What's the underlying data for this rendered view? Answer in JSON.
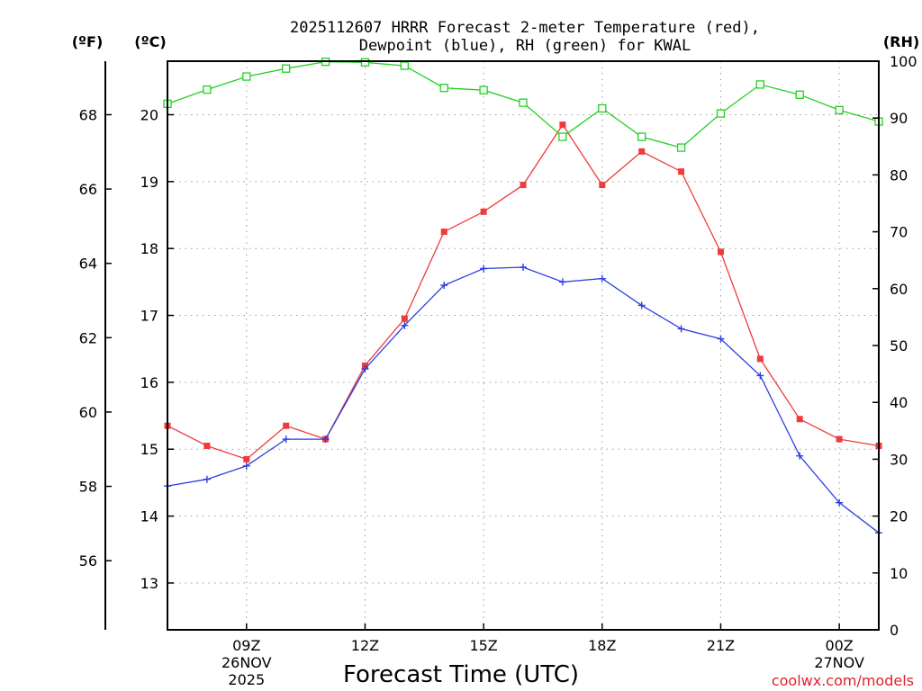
{
  "chart_data": {
    "type": "line",
    "title_lines": [
      "2025112607 HRRR Forecast 2-meter Temperature (red),",
      "Dewpoint (blue), RH (green) for KWAL"
    ],
    "units": {
      "fahrenheit": "(ºF)",
      "celsius": "(ºC)",
      "rh": "(RH)"
    },
    "xlabel": "Forecast Time (UTC)",
    "credit": "coolwx.com/models",
    "x_hours": [
      7,
      8,
      9,
      10,
      11,
      12,
      13,
      14,
      15,
      16,
      17,
      18,
      19,
      20,
      21,
      22,
      23,
      24,
      25
    ],
    "xlim": [
      7,
      25
    ],
    "x_ticks": [
      {
        "hour": 9,
        "label": "09Z",
        "sub": [
          "26NOV",
          "2025"
        ]
      },
      {
        "hour": 12,
        "label": "12Z",
        "sub": []
      },
      {
        "hour": 15,
        "label": "15Z",
        "sub": []
      },
      {
        "hour": 18,
        "label": "18Z",
        "sub": []
      },
      {
        "hour": 21,
        "label": "21Z",
        "sub": []
      },
      {
        "hour": 24,
        "label": "00Z",
        "sub": [
          "27NOV"
        ]
      }
    ],
    "celsius_range": [
      12.3,
      20.8
    ],
    "celsius_ticks": [
      "13",
      "14",
      "15",
      "16",
      "17",
      "18",
      "19",
      "20"
    ],
    "fahrenheit_ticks": [
      "56",
      "58",
      "60",
      "62",
      "64",
      "66",
      "68"
    ],
    "rh_range": [
      0,
      100
    ],
    "rh_ticks": [
      "0",
      "10",
      "20",
      "30",
      "40",
      "50",
      "60",
      "70",
      "80",
      "90",
      "100"
    ],
    "series": [
      {
        "name": "Temperature",
        "unit": "C",
        "color": "#ef3b3b",
        "marker": "filled-square",
        "values": [
          15.35,
          15.05,
          14.85,
          15.35,
          15.15,
          16.25,
          16.95,
          18.25,
          18.55,
          18.95,
          19.85,
          18.95,
          19.45,
          19.15,
          17.95,
          16.35,
          15.45,
          15.15,
          15.05
        ]
      },
      {
        "name": "Dewpoint",
        "unit": "C",
        "color": "#2b3fe0",
        "marker": "plus",
        "values": [
          14.45,
          14.55,
          14.75,
          15.15,
          15.15,
          16.2,
          16.85,
          17.45,
          17.7,
          17.72,
          17.5,
          17.55,
          17.15,
          16.8,
          16.65,
          16.1,
          14.9,
          14.2,
          13.75
        ]
      },
      {
        "name": "Relative Humidity",
        "unit": "RH",
        "color": "#22d022",
        "marker": "open-square",
        "values": [
          92.5,
          95,
          97.3,
          98.7,
          99.9,
          99.8,
          99.2,
          95.3,
          94.9,
          92.7,
          86.7,
          91.7,
          86.7,
          84.8,
          90.8,
          95.9,
          94.1,
          91.4,
          89.4
        ]
      }
    ],
    "grid": true
  }
}
